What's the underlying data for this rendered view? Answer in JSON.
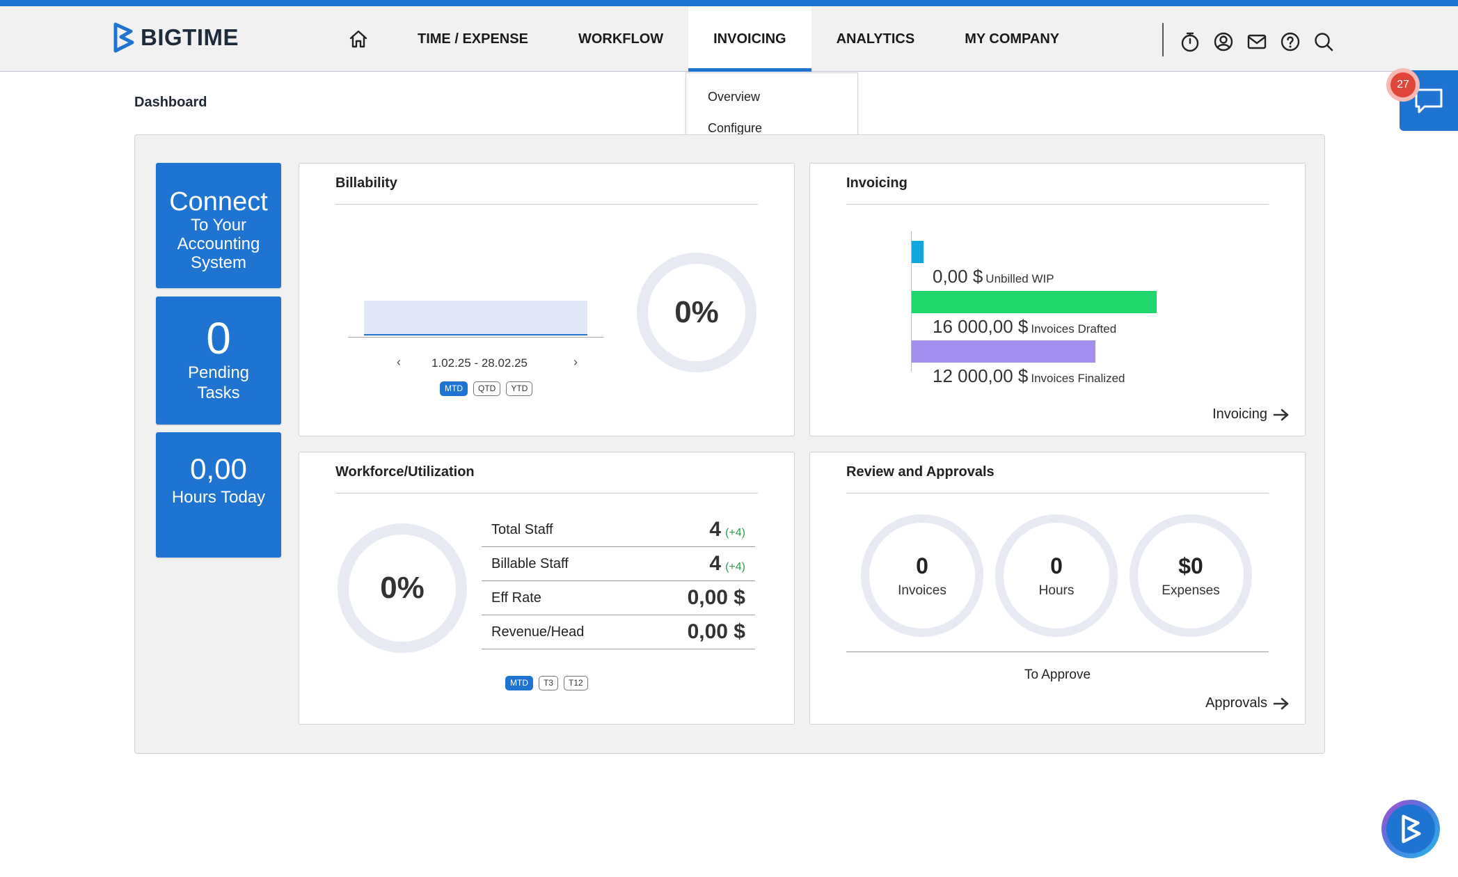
{
  "app": {
    "brand": "BIGTIME",
    "accent": "#1f73d1"
  },
  "nav": {
    "home_icon": "home-icon",
    "items": [
      {
        "label": "TIME / EXPENSE"
      },
      {
        "label": "WORKFLOW"
      },
      {
        "label": "INVOICING",
        "active": true
      },
      {
        "label": "ANALYTICS"
      },
      {
        "label": "MY COMPANY"
      }
    ],
    "icons": [
      "stopwatch-icon",
      "user-icon",
      "mail-icon",
      "help-icon",
      "search-icon"
    ]
  },
  "dropdown": {
    "items": [
      "Overview",
      "Configure"
    ]
  },
  "page": {
    "title": "Dashboard"
  },
  "chat": {
    "badge_count": "27"
  },
  "tiles": {
    "connect": {
      "title": "Connect",
      "line1": "To Your",
      "line2": "Accounting",
      "line3": "System"
    },
    "pending": {
      "value": "0",
      "line1": "Pending",
      "line2": "Tasks"
    },
    "hours": {
      "value": "0,00",
      "label": "Hours Today"
    }
  },
  "billability": {
    "title": "Billability",
    "date_range": "1.02.25 - 28.02.25",
    "percent": "0%",
    "periods": [
      "MTD",
      "QTD",
      "YTD"
    ],
    "active_period": "MTD"
  },
  "invoicing": {
    "title": "Invoicing",
    "link": "Invoicing",
    "colors": {
      "unbilled": "#12a5e0",
      "drafted": "#1fd66b",
      "finalized": "#a48ff0"
    },
    "rows": [
      {
        "amount": "0,00 $",
        "label": "Unbilled WIP"
      },
      {
        "amount": "16 000,00 $",
        "label": "Invoices Drafted"
      },
      {
        "amount": "12 000,00 $",
        "label": "Invoices Finalized"
      }
    ]
  },
  "chart_data": {
    "type": "bar",
    "categories": [
      "Unbilled WIP",
      "Invoices Drafted",
      "Invoices Finalized"
    ],
    "values": [
      0,
      16000,
      12000
    ],
    "title": "Invoicing"
  },
  "workforce": {
    "title": "Workforce/Utilization",
    "percent": "0%",
    "rows": [
      {
        "label": "Total Staff",
        "value": "4",
        "delta": "(+4)"
      },
      {
        "label": "Billable Staff",
        "value": "4",
        "delta": "(+4)"
      },
      {
        "label": "Eff Rate",
        "value": "0,00 $",
        "delta": ""
      },
      {
        "label": "Revenue/Head",
        "value": "0,00 $",
        "delta": ""
      }
    ],
    "periods": [
      "MTD",
      "T3",
      "T12"
    ],
    "active_period": "MTD"
  },
  "review": {
    "title": "Review and Approvals",
    "items": [
      {
        "value": "0",
        "label": "Invoices"
      },
      {
        "value": "0",
        "label": "Hours"
      },
      {
        "value": "$0",
        "label": "Expenses"
      }
    ],
    "to_approve": "To Approve",
    "link": "Approvals"
  }
}
